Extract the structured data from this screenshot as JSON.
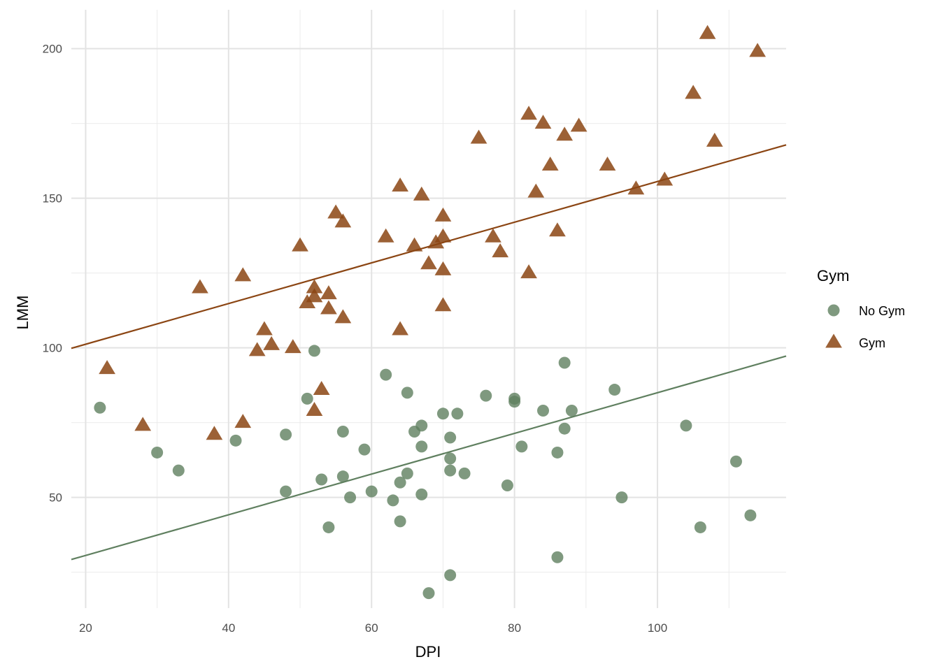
{
  "chart_data": {
    "type": "scatter",
    "xlabel": "DPI",
    "ylabel": "LMM",
    "xlim": [
      18,
      118
    ],
    "ylim": [
      13,
      213
    ],
    "x_ticks": [
      20,
      40,
      60,
      80,
      100
    ],
    "y_ticks": [
      50,
      100,
      150,
      200
    ],
    "x_tick_labels": [
      "20",
      "40",
      "60",
      "80",
      "100"
    ],
    "y_tick_labels": [
      "50",
      "100",
      "150",
      "200"
    ],
    "grid": true,
    "legend": {
      "title": "Gym",
      "placement": "right"
    },
    "series": [
      {
        "name": "No Gym",
        "shape": "circle",
        "color": "#5f7f5f",
        "fit": {
          "slope": 0.68,
          "intercept": 17
        },
        "x": [
          22,
          30,
          33,
          41,
          48,
          48,
          51,
          52,
          53,
          54,
          56,
          56,
          57,
          59,
          60,
          62,
          63,
          64,
          64,
          65,
          65,
          66,
          67,
          67,
          67,
          68,
          70,
          71,
          71,
          71,
          71,
          72,
          73,
          76,
          79,
          80,
          80,
          81,
          84,
          86,
          86,
          87,
          87,
          88,
          94,
          95,
          104,
          106,
          111,
          113
        ],
        "y": [
          80,
          65,
          59,
          69,
          71,
          52,
          83,
          99,
          56,
          40,
          72,
          57,
          50,
          66,
          52,
          91,
          49,
          55,
          42,
          85,
          58,
          72,
          74,
          67,
          51,
          18,
          78,
          70,
          63,
          59,
          24,
          78,
          58,
          84,
          54,
          83,
          82,
          67,
          79,
          65,
          30,
          95,
          73,
          79,
          86,
          50,
          74,
          40,
          62,
          44
        ]
      },
      {
        "name": "Gym",
        "shape": "triangle",
        "color": "#8b4513",
        "fit": {
          "slope": 0.68,
          "intercept": 87.6
        },
        "x": [
          23,
          28,
          36,
          38,
          42,
          42,
          44,
          45,
          46,
          49,
          50,
          51,
          52,
          52,
          52,
          53,
          54,
          54,
          55,
          56,
          56,
          62,
          64,
          64,
          66,
          67,
          68,
          69,
          70,
          70,
          70,
          70,
          75,
          77,
          78,
          82,
          82,
          83,
          84,
          85,
          86,
          87,
          89,
          93,
          97,
          101,
          105,
          107,
          108,
          114
        ],
        "y": [
          93,
          74,
          120,
          71,
          124,
          75,
          99,
          106,
          101,
          100,
          134,
          115,
          120,
          117,
          79,
          86,
          118,
          113,
          145,
          142,
          110,
          137,
          154,
          106,
          134,
          151,
          128,
          135,
          144,
          137,
          126,
          114,
          170,
          137,
          132,
          178,
          125,
          152,
          175,
          161,
          139,
          171,
          174,
          161,
          153,
          156,
          185,
          205,
          169,
          199
        ]
      }
    ]
  }
}
